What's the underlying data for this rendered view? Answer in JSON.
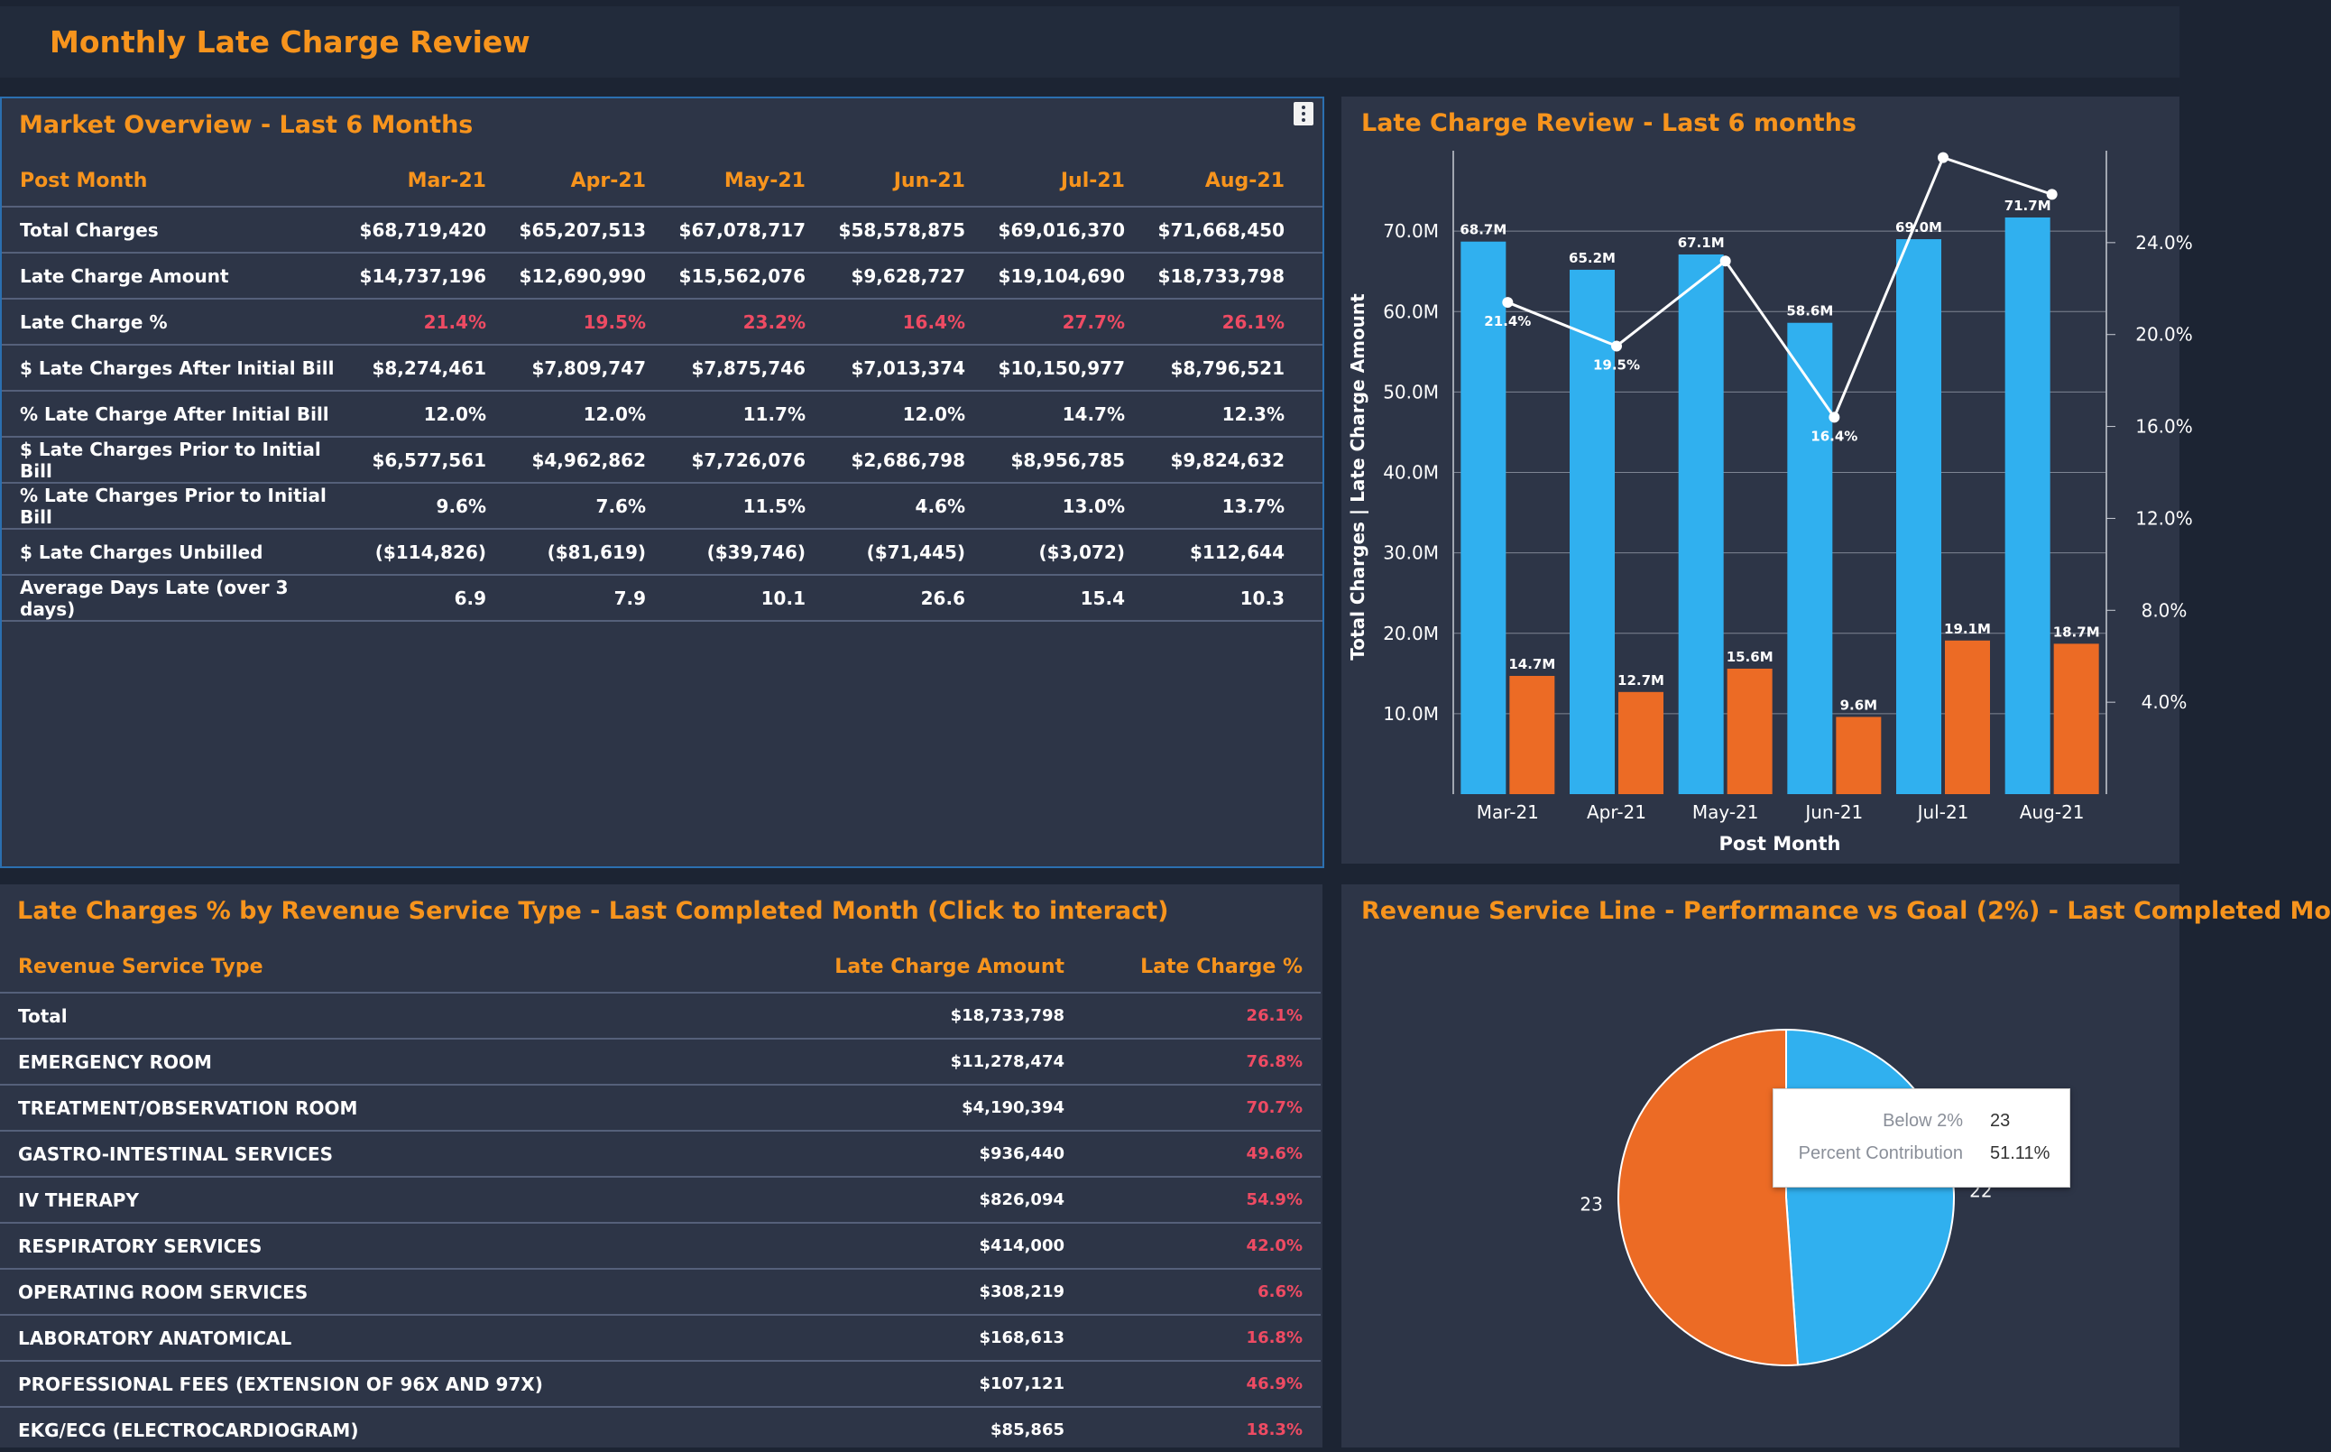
{
  "app": {
    "title": "Monthly Late Charge Review"
  },
  "market": {
    "title": "Market Overview - Last 6 Months",
    "header": [
      "Post Month",
      "Mar-21",
      "Apr-21",
      "May-21",
      "Jun-21",
      "Jul-21",
      "Aug-21"
    ],
    "rows": [
      [
        "Total Charges",
        "$68,719,420",
        "$65,207,513",
        "$67,078,717",
        "$58,578,875",
        "$69,016,370",
        "$71,668,450"
      ],
      [
        "Late Charge Amount",
        "$14,737,196",
        "$12,690,990",
        "$15,562,076",
        "$9,628,727",
        "$19,104,690",
        "$18,733,798"
      ],
      [
        "Late Charge %",
        "21.4%",
        "19.5%",
        "23.2%",
        "16.4%",
        "27.7%",
        "26.1%"
      ],
      [
        "$ Late Charges After Initial Bill",
        "$8,274,461",
        "$7,809,747",
        "$7,875,746",
        "$7,013,374",
        "$10,150,977",
        "$8,796,521"
      ],
      [
        "% Late Charge After Initial Bill",
        "12.0%",
        "12.0%",
        "11.7%",
        "12.0%",
        "14.7%",
        "12.3%"
      ],
      [
        "$ Late Charges Prior to Initial Bill",
        "$6,577,561",
        "$4,962,862",
        "$7,726,076",
        "$2,686,798",
        "$8,956,785",
        "$9,824,632"
      ],
      [
        "% Late Charges Prior to Initial Bill",
        "9.6%",
        "7.6%",
        "11.5%",
        "4.6%",
        "13.0%",
        "13.7%"
      ],
      [
        "$ Late Charges Unbilled",
        "($114,826)",
        "($81,619)",
        "($39,746)",
        "($71,445)",
        "($3,072)",
        "$112,644"
      ],
      [
        "Average Days Late (over 3 days)",
        "6.9",
        "7.9",
        "10.1",
        "26.6",
        "15.4",
        "10.3"
      ]
    ]
  },
  "late_chart": {
    "title": "Late Charge Review - Last 6 months",
    "bar_color_total": "#30b0ef",
    "bar_color_late": "#ec6b25"
  },
  "service": {
    "title": "Late Charges % by Revenue Service Type - Last Completed Month (Click to interact)",
    "header": [
      "Revenue Service Type",
      "Late Charge Amount",
      "Late Charge %"
    ],
    "rows": [
      [
        "Total",
        "$18,733,798",
        "26.1%"
      ],
      [
        "EMERGENCY ROOM",
        "$11,278,474",
        "76.8%"
      ],
      [
        "TREATMENT/OBSERVATION ROOM",
        "$4,190,394",
        "70.7%"
      ],
      [
        "GASTRO-INTESTINAL SERVICES",
        "$936,440",
        "49.6%"
      ],
      [
        "IV THERAPY",
        "$826,094",
        "54.9%"
      ],
      [
        "RESPIRATORY SERVICES",
        "$414,000",
        "42.0%"
      ],
      [
        "OPERATING ROOM SERVICES",
        "$308,219",
        "6.6%"
      ],
      [
        "LABORATORY ANATOMICAL",
        "$168,613",
        "16.8%"
      ],
      [
        "PROFESSIONAL FEES (EXTENSION OF 96X AND 97X)",
        "$107,121",
        "46.9%"
      ],
      [
        "EKG/ECG (ELECTROCARDIOGRAM)",
        "$85,865",
        "18.3%"
      ]
    ]
  },
  "pie": {
    "title": "Revenue Service Line - Performance vs Goal (2%) - Last Completed Mo",
    "tooltip": {
      "label1": "Below 2%",
      "value1": "23",
      "label2": "Percent Contribution",
      "value2": "51.11%"
    }
  },
  "chart_data": [
    {
      "type": "bar",
      "categories": [
        "Mar-21",
        "Apr-21",
        "May-21",
        "Jun-21",
        "Jul-21",
        "Aug-21"
      ],
      "series": [
        {
          "values": [
            68.7,
            65.2,
            67.1,
            58.6,
            69.0,
            71.7
          ],
          "labels": [
            "68.7M",
            "65.2M",
            "67.1M",
            "58.6M",
            "69.0M",
            "71.7M"
          ],
          "color": "#30b0ef"
        },
        {
          "values": [
            14.7,
            12.7,
            15.6,
            9.6,
            19.1,
            18.7
          ],
          "labels": [
            "14.7M",
            "12.7M",
            "15.6M",
            "9.6M",
            "19.1M",
            "18.7M"
          ],
          "color": "#ec6b25"
        },
        {
          "type": "line",
          "axis": "right",
          "values": [
            21.4,
            19.5,
            23.2,
            16.4,
            27.7,
            26.1
          ],
          "labels": [
            "21.4%",
            "19.5%",
            "",
            "16.4%",
            "",
            ""
          ],
          "color": "#ffffff"
        }
      ],
      "xlabel": "Post Month",
      "ylabel": "Total Charges  |  Late Charge Amount",
      "ylim": [
        0,
        80
      ],
      "y2lim": [
        0,
        28
      ],
      "yticks": [
        10,
        20,
        30,
        40,
        50,
        60,
        70
      ],
      "yticklabels": [
        "10.0M",
        "20.0M",
        "30.0M",
        "40.0M",
        "50.0M",
        "60.0M",
        "70.0M"
      ],
      "y2ticks": [
        4,
        8,
        12,
        16,
        20,
        24
      ],
      "y2ticklabels": [
        "4.0%",
        "8.0%",
        "12.0%",
        "16.0%",
        "20.0%",
        "24.0%"
      ],
      "grid": true
    },
    {
      "type": "pie",
      "slices": [
        {
          "label": "23",
          "value": 23,
          "color": "#ec6b25"
        },
        {
          "label": "22",
          "value": 22,
          "color": "#30b0ef"
        }
      ]
    }
  ]
}
